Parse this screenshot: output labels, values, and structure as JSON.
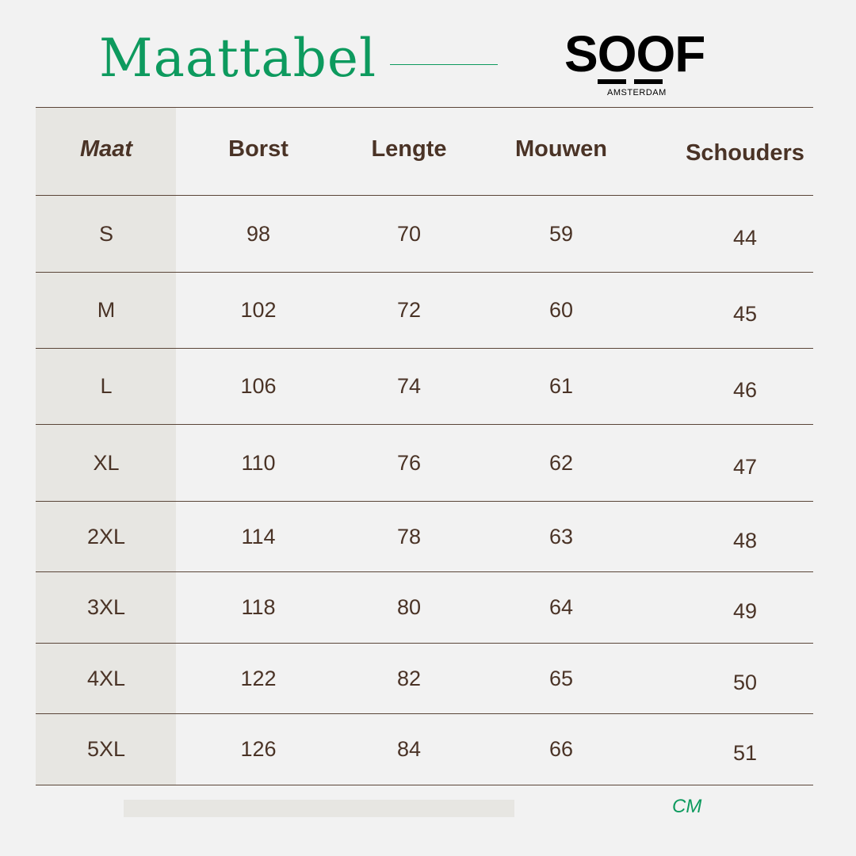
{
  "title": "Maattabel",
  "logo": {
    "name": "SOOF",
    "subtitle": "AMSTERDAM"
  },
  "colors": {
    "accent": "#0d9a5e",
    "text": "#4a3326",
    "background": "#f2f2f2",
    "column_shade": "#e7e6e2"
  },
  "table": {
    "headers": [
      "Maat",
      "Borst",
      "Lengte",
      "Mouwen",
      "Schouders"
    ],
    "rows": [
      [
        "S",
        "98",
        "70",
        "59",
        "44"
      ],
      [
        "M",
        "102",
        "72",
        "60",
        "45"
      ],
      [
        "L",
        "106",
        "74",
        "61",
        "46"
      ],
      [
        "XL",
        "110",
        "76",
        "62",
        "47"
      ],
      [
        "2XL",
        "114",
        "78",
        "63",
        "48"
      ],
      [
        "3XL",
        "118",
        "80",
        "64",
        "49"
      ],
      [
        "4XL",
        "122",
        "82",
        "65",
        "50"
      ],
      [
        "5XL",
        "126",
        "84",
        "66",
        "51"
      ]
    ]
  },
  "unit": "CM"
}
